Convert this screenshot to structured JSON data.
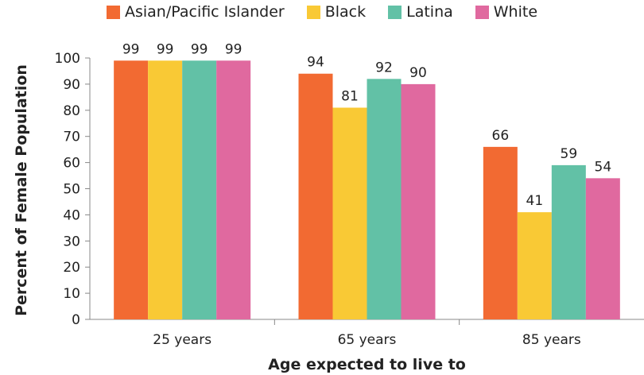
{
  "chart_data": {
    "type": "bar",
    "categories": [
      "25 years",
      "65 years",
      "85 years"
    ],
    "series": [
      {
        "name": "Asian/Pacific Islander",
        "color": "#f26a32",
        "values": [
          99,
          94,
          66
        ]
      },
      {
        "name": "Black",
        "color": "#f9c935",
        "values": [
          99,
          81,
          41
        ]
      },
      {
        "name": "Latina",
        "color": "#62c1a6",
        "values": [
          99,
          92,
          59
        ]
      },
      {
        "name": "White",
        "color": "#e0699f",
        "values": [
          99,
          90,
          54
        ]
      }
    ],
    "data_labels": [
      [
        "99",
        "94",
        "66"
      ],
      [
        "99",
        "81",
        "41"
      ],
      [
        "99",
        "92",
        "59"
      ],
      [
        "99",
        "90",
        "54"
      ]
    ],
    "xlabel": "Age expected to live to",
    "ylabel": "Percent of Female Population",
    "ylim": [
      0,
      100
    ],
    "yticks": [
      "0",
      "10",
      "20",
      "30",
      "40",
      "50",
      "60",
      "70",
      "80",
      "90",
      "100"
    ],
    "legend_position": "top",
    "grid": false
  }
}
